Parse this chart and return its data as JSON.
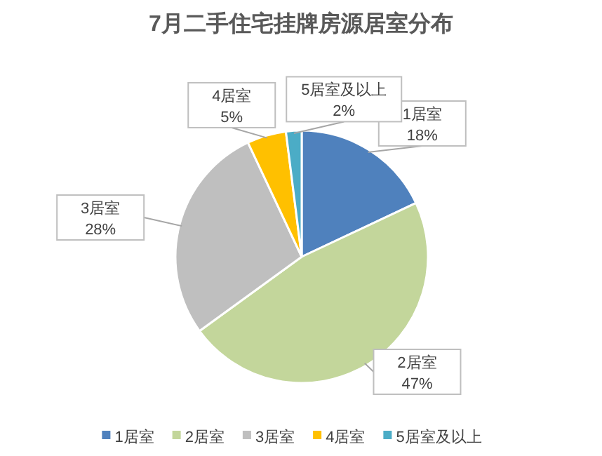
{
  "chart_data": {
    "type": "pie",
    "title": "7月二手住宅挂牌房源居室分布",
    "categories": [
      "1居室",
      "2居室",
      "3居室",
      "4居室",
      "5居室及以上"
    ],
    "values": [
      18,
      47,
      28,
      5,
      2
    ],
    "value_labels": [
      "18%",
      "47%",
      "28%",
      "5%",
      "2%"
    ],
    "colors": [
      "#4f81bd",
      "#c3d69b",
      "#bfbfbf",
      "#ffc000",
      "#4bacc6"
    ],
    "legend": "bottom"
  }
}
